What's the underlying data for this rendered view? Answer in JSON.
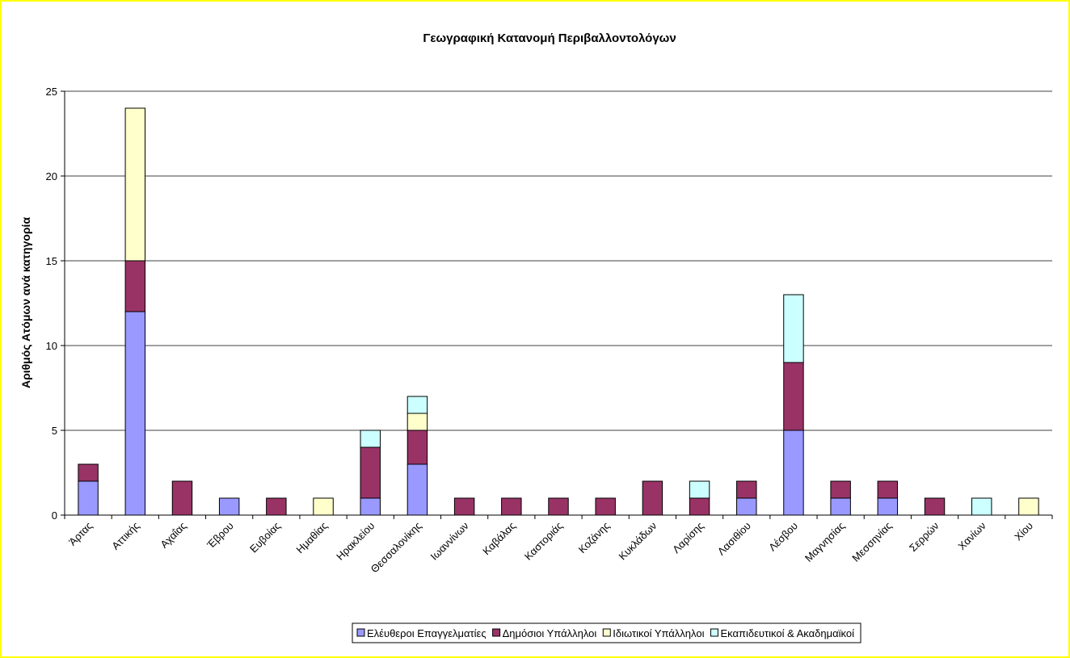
{
  "chart_data": {
    "type": "stacked_bar",
    "title": "Γεωγραφική Κατανομή Περιβαλλοντολόγων",
    "y_label": "Αριθμός Ατόμων ανά κατηγορία",
    "categories": [
      "Άρτας",
      "Αττικής",
      "Αχαΐας",
      "Έβρου",
      "Ευβοίας",
      "Ημαθίας",
      "Ηρακλείου",
      "Θεσσαλονίκης",
      "Ιωαννίνων",
      "Καβάλας",
      "Καστοριάς",
      "Κοζάνης",
      "Κυκλάδων",
      "Λαρίσης",
      "Λασιθίου",
      "Λέσβου",
      "Μαγνησίας",
      "Μεσσηνίας",
      "Σερρών",
      "Χανίων",
      "Χίου"
    ],
    "series": [
      {
        "name": "Ελέυθεροι Επαγγελματίες",
        "color": "#9999ff",
        "values": [
          2,
          12,
          0,
          1,
          0,
          0,
          1,
          3,
          0,
          0,
          0,
          0,
          0,
          0,
          1,
          5,
          1,
          1,
          0,
          0,
          0
        ]
      },
      {
        "name": "Δημόσιοι Υπάλληλοι",
        "color": "#993366",
        "values": [
          1,
          3,
          2,
          0,
          1,
          0,
          3,
          2,
          1,
          1,
          1,
          1,
          2,
          1,
          1,
          4,
          1,
          1,
          1,
          0,
          0
        ]
      },
      {
        "name": "Ιδιωτικοί Υπάλληλοι",
        "color": "#ffffcc",
        "values": [
          0,
          9,
          0,
          0,
          0,
          1,
          0,
          1,
          0,
          0,
          0,
          0,
          0,
          0,
          0,
          0,
          0,
          0,
          0,
          0,
          1
        ]
      },
      {
        "name": "Εκαπιδευτικοί & Ακαδημαϊκοί",
        "color": "#ccffff",
        "values": [
          0,
          0,
          0,
          0,
          0,
          0,
          1,
          1,
          0,
          0,
          0,
          0,
          0,
          1,
          0,
          4,
          0,
          0,
          0,
          1,
          0
        ]
      }
    ],
    "ylim": [
      0,
      25
    ],
    "yticks": [
      0,
      5,
      10,
      15,
      20,
      25
    ],
    "grid": true
  }
}
